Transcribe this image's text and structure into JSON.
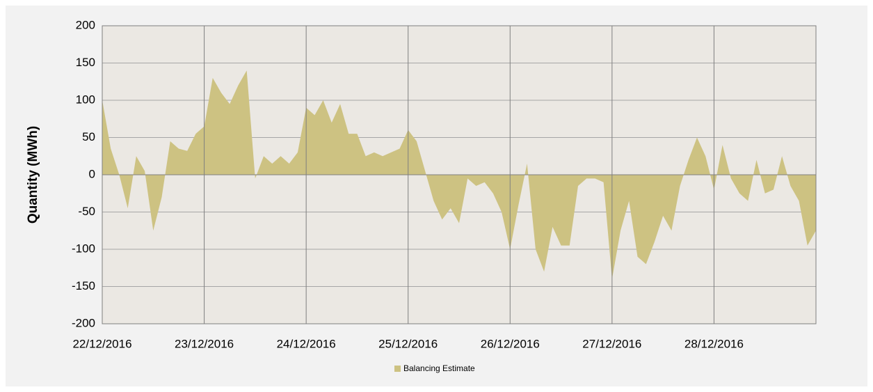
{
  "chart_data": {
    "type": "area",
    "ylabel": "Quantity (MWh)",
    "categories": [
      "22/12/2016",
      null,
      null,
      null,
      null,
      null,
      null,
      null,
      null,
      null,
      null,
      null,
      "23/12/2016",
      null,
      null,
      null,
      null,
      null,
      null,
      null,
      null,
      null,
      null,
      null,
      "24/12/2016",
      null,
      null,
      null,
      null,
      null,
      null,
      null,
      null,
      null,
      null,
      null,
      "25/12/2016",
      null,
      null,
      null,
      null,
      null,
      null,
      null,
      null,
      null,
      null,
      null,
      "26/12/2016",
      null,
      null,
      null,
      null,
      null,
      null,
      null,
      null,
      null,
      null,
      null,
      "27/12/2016",
      null,
      null,
      null,
      null,
      null,
      null,
      null,
      null,
      null,
      null,
      null,
      "28/12/2016",
      null,
      null,
      null,
      null,
      null,
      null,
      null,
      null,
      null,
      null,
      null,
      null
    ],
    "series": [
      {
        "name": "Balancing Estimate",
        "color": "#cdc282",
        "values": [
          100,
          35,
          0,
          -45,
          25,
          5,
          -75,
          -30,
          45,
          35,
          32,
          55,
          65,
          130,
          110,
          95,
          120,
          140,
          -5,
          25,
          15,
          25,
          15,
          30,
          90,
          80,
          100,
          70,
          95,
          55,
          55,
          25,
          30,
          25,
          30,
          35,
          60,
          45,
          5,
          -35,
          -60,
          -45,
          -65,
          -5,
          -15,
          -10,
          -25,
          -50,
          -100,
          -40,
          15,
          -100,
          -130,
          -70,
          -95,
          -95,
          -15,
          -5,
          -5,
          -10,
          -140,
          -75,
          -35,
          -110,
          -120,
          -90,
          -55,
          -75,
          -15,
          20,
          50,
          25,
          -20,
          40,
          -5,
          -25,
          -35,
          20,
          -25,
          -20,
          25,
          -15,
          -35,
          -95,
          -75
        ]
      }
    ],
    "ylim": [
      -200,
      200
    ],
    "yticks": [
      -200,
      -150,
      -100,
      -50,
      0,
      50,
      100,
      150,
      200
    ],
    "grid": true,
    "legend": "bottom"
  }
}
